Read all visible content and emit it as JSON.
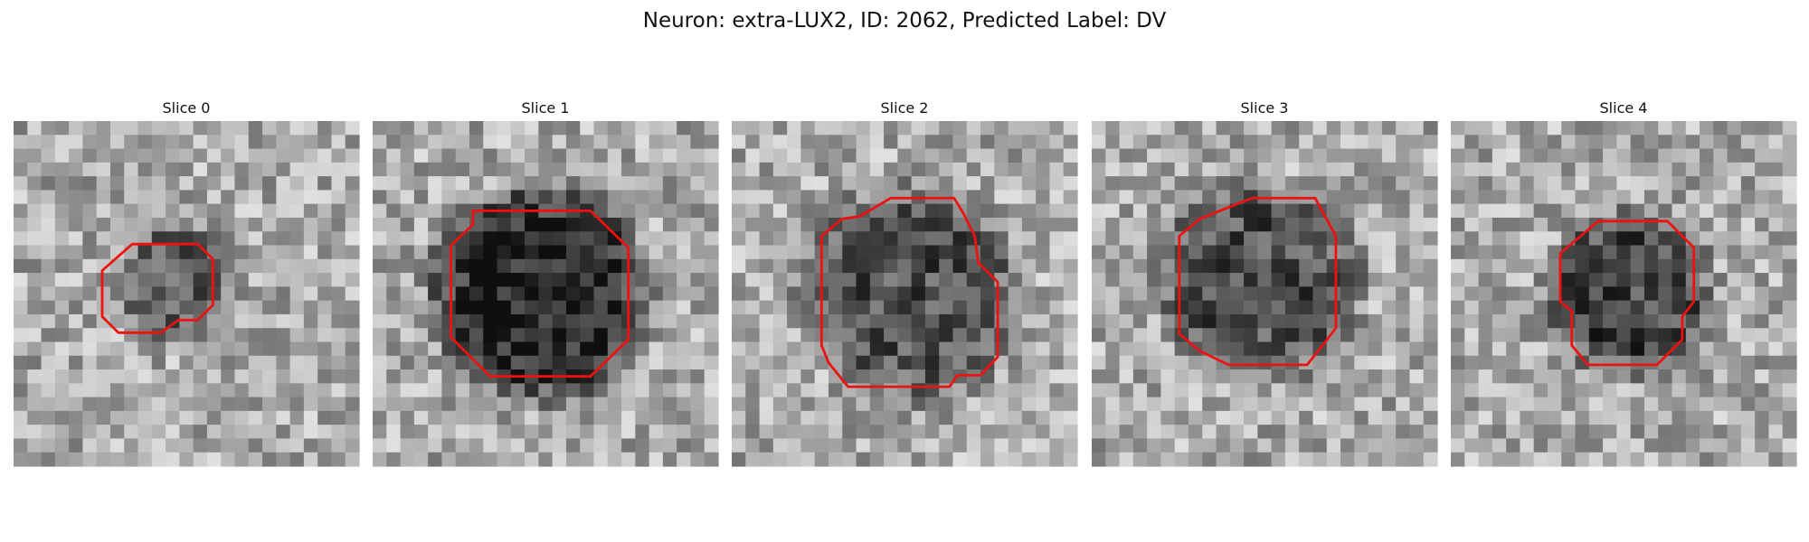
{
  "header": {
    "title": "Neuron: extra-LUX2, ID: 2062, Predicted Label: DV"
  },
  "panels": [
    {
      "title": "Slice 0"
    },
    {
      "title": "Slice 1"
    },
    {
      "title": "Slice 2"
    },
    {
      "title": "Slice 3"
    },
    {
      "title": "Slice 4"
    }
  ]
}
